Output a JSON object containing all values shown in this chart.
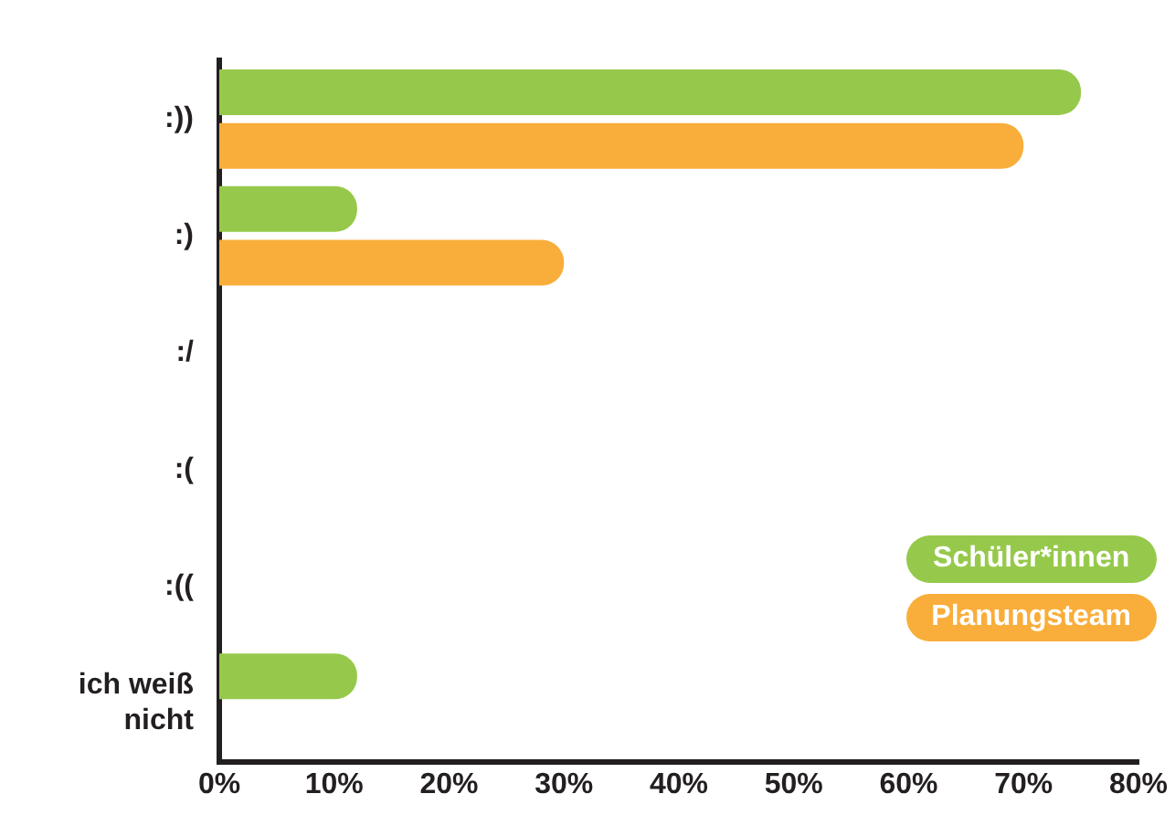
{
  "chart_data": {
    "type": "bar",
    "orientation": "horizontal",
    "categories": [
      ":))",
      ":)",
      ":/",
      ":(",
      ":((",
      "ich weiß nicht"
    ],
    "series": [
      {
        "name": "Schüler*innen",
        "color": "#96c94b",
        "values": [
          75,
          12,
          null,
          null,
          null,
          12
        ]
      },
      {
        "name": "Planungsteam",
        "color": "#f9ad3a",
        "values": [
          70,
          30,
          null,
          null,
          null,
          null
        ]
      }
    ],
    "xlim": [
      0,
      80
    ],
    "xticks": [
      {
        "value": 0,
        "label": "0%"
      },
      {
        "value": 10,
        "label": "10%"
      },
      {
        "value": 20,
        "label": "20%"
      },
      {
        "value": 30,
        "label": "30%"
      },
      {
        "value": 40,
        "label": "40%"
      },
      {
        "value": 50,
        "label": "50%"
      },
      {
        "value": 60,
        "label": "60%"
      },
      {
        "value": 70,
        "label": "70%"
      },
      {
        "value": 80,
        "label": "80%"
      }
    ],
    "grid": false,
    "legend": "bottom right"
  }
}
